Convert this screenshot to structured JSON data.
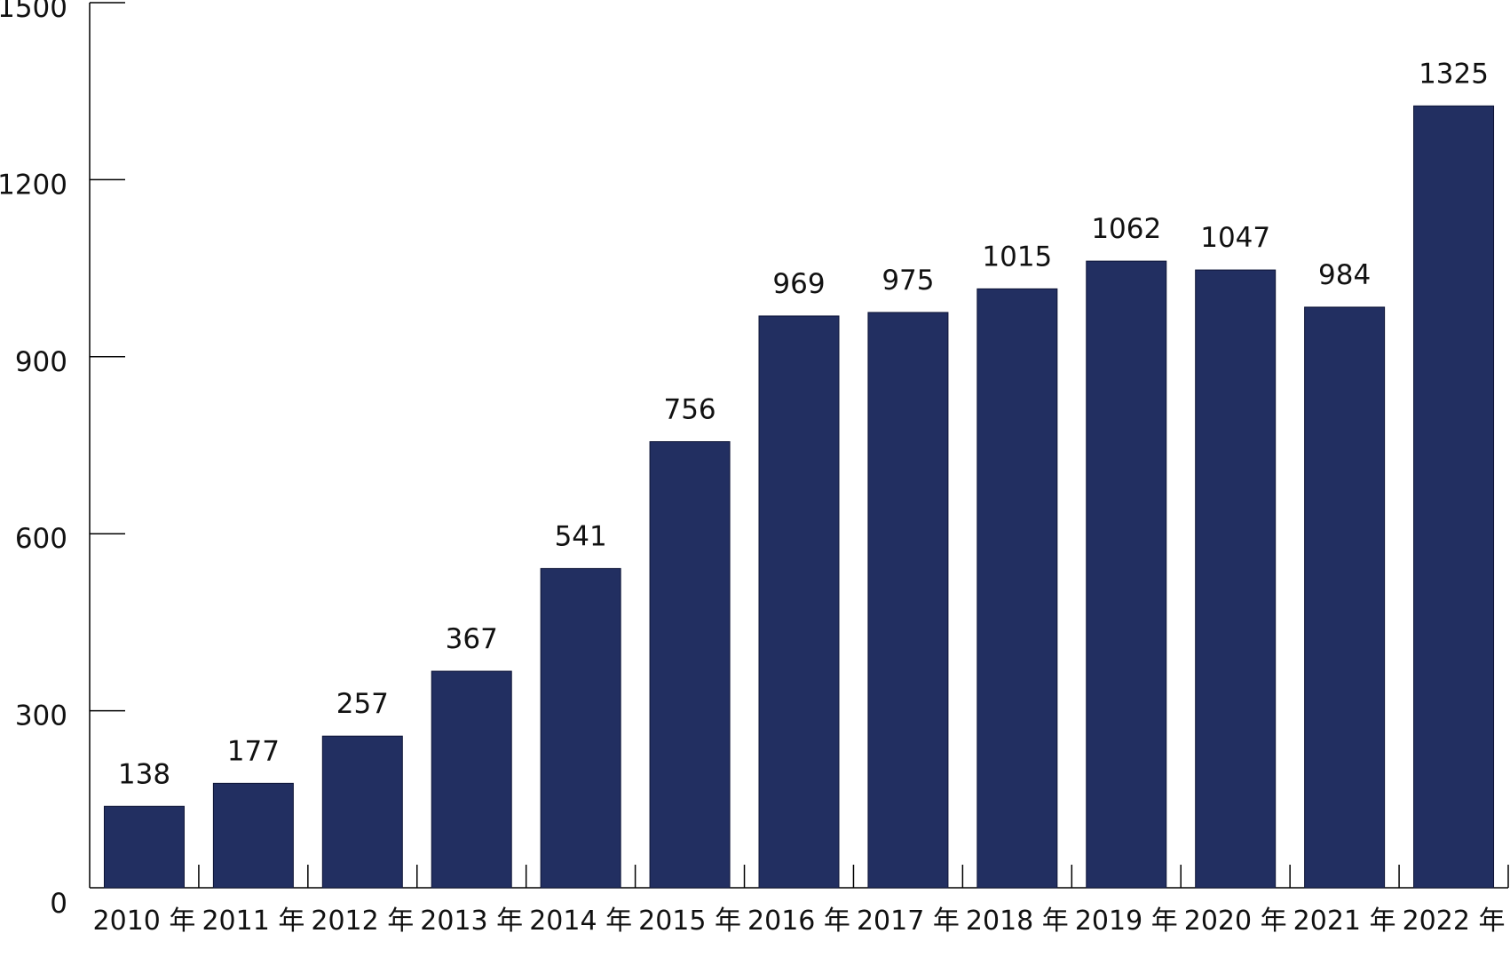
{
  "chart_data": {
    "type": "bar",
    "title": "",
    "xlabel": "",
    "ylabel": "",
    "categories": [
      "2010 年",
      "2011 年",
      "2012 年",
      "2013 年",
      "2014 年",
      "2015 年",
      "2016 年",
      "2017 年",
      "2018 年",
      "2019 年",
      "2020 年",
      "2021 年",
      "2022 年"
    ],
    "values": [
      138,
      177,
      257,
      367,
      541,
      756,
      969,
      975,
      1015,
      1062,
      1047,
      984,
      1325
    ],
    "data_labels": [
      "138",
      "177",
      "257",
      "367",
      "541",
      "756",
      "969",
      "975",
      "1015",
      "1062",
      "1047",
      "984",
      "1325"
    ],
    "ylim": [
      0,
      1500
    ],
    "yticks": [
      0,
      300,
      600,
      900,
      1200,
      1500
    ],
    "ytick_labels": [
      "0",
      "300",
      "600",
      "900",
      "1200",
      "1500"
    ],
    "grid": false,
    "legend": "none",
    "bar_color": "#222f61"
  }
}
